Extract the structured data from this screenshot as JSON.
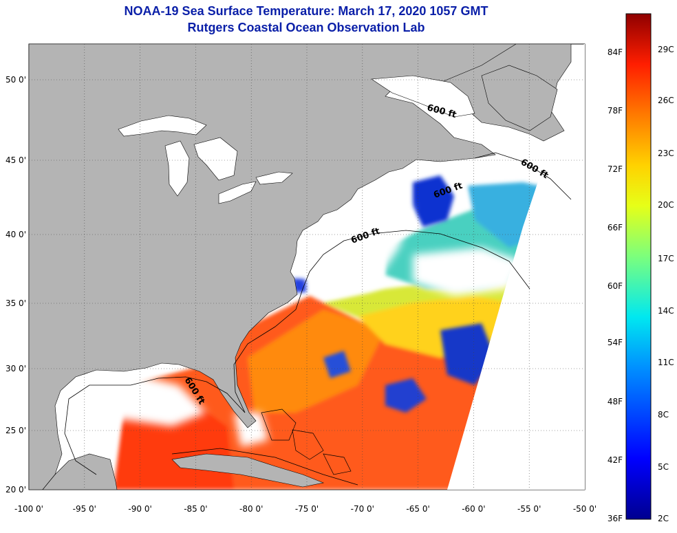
{
  "title": {
    "line1": "NOAA-19 Sea Surface Temperature:  March 17, 2020 1057 GMT",
    "line2": "Rutgers Coastal Ocean Observation Lab"
  },
  "map": {
    "x_ticks": [
      "-100 0'",
      "-95 0'",
      "-90 0'",
      "-85 0'",
      "-80 0'",
      "-75 0'",
      "-70 0'",
      "-65 0'",
      "-60 0'",
      "-55 0'",
      "-50 0'"
    ],
    "y_ticks": [
      "50 0'",
      "45 0'",
      "40 0'",
      "35 0'",
      "30 0'",
      "25 0'",
      "20 0'"
    ],
    "contour_labels": [
      "600 ft",
      "600 ft",
      "600 ft",
      "600 ft",
      "600 ft"
    ]
  },
  "colorbar": {
    "fahrenheit": [
      "84F",
      "78F",
      "72F",
      "66F",
      "60F",
      "54F",
      "48F",
      "42F",
      "36F"
    ],
    "celsius": [
      "29C",
      "26C",
      "23C",
      "20C",
      "17C",
      "14C",
      "11C",
      "8C",
      "5C",
      "2C"
    ]
  },
  "colors": {
    "title": "#0a1fa8",
    "land": "#b4b4b4",
    "cloud": "#ffffff"
  }
}
